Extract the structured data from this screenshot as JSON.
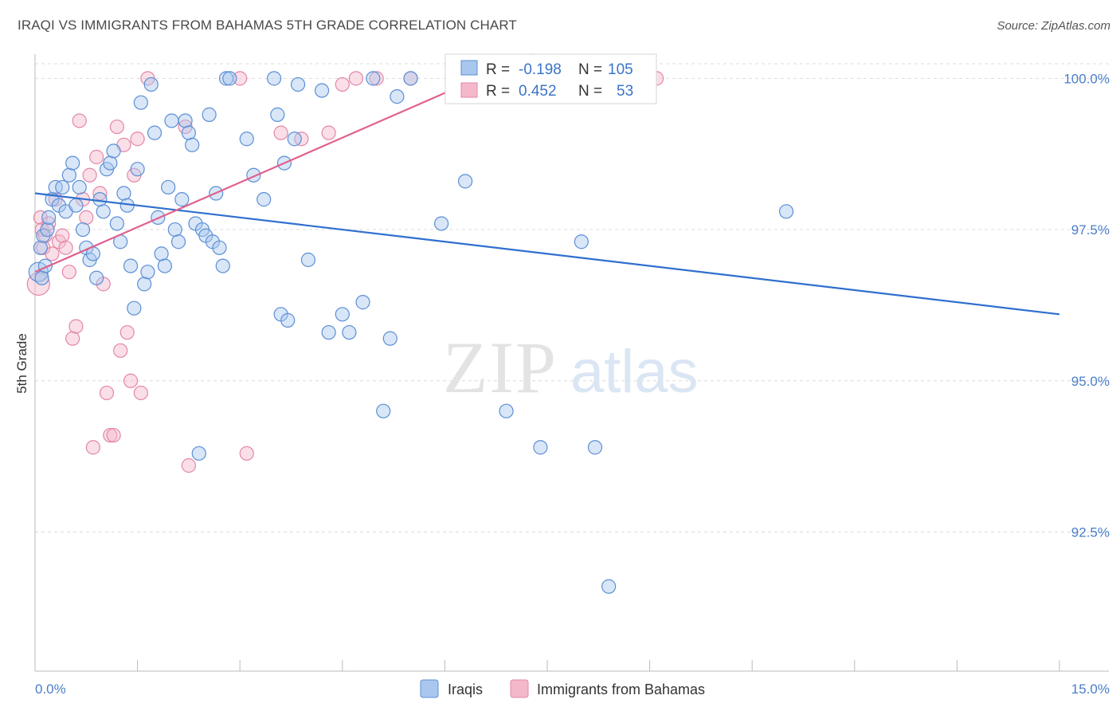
{
  "title": "IRAQI VS IMMIGRANTS FROM BAHAMAS 5TH GRADE CORRELATION CHART",
  "source": "Source: ZipAtlas.com",
  "watermark": {
    "zip": "ZIP",
    "atlas": "atlas"
  },
  "colors": {
    "blue_fill": "#a9c7ee",
    "blue_stroke": "#5b8fd6",
    "blue_line": "#2f6fcf",
    "pink_fill": "#f5b8cb",
    "pink_stroke": "#e486a6",
    "pink_line": "#e0608d",
    "tick_label": "#4a7ec9",
    "grid": "#dcdcdc"
  },
  "legend": {
    "rows": [
      {
        "r_label": "R =",
        "r_value": "-0.198",
        "n_label": "N =",
        "n_value": "105"
      },
      {
        "r_label": "R =",
        "r_value": "0.452",
        "n_label": "N =",
        "n_value": "53"
      }
    ]
  },
  "chart_data": {
    "type": "scatter",
    "title": "IRAQI VS IMMIGRANTS FROM BAHAMAS 5TH GRADE CORRELATION CHART",
    "xlabel": "",
    "ylabel": "5th Grade",
    "xlim": [
      0,
      15
    ],
    "ylim": [
      90.2,
      100.4
    ],
    "y_ticks": [
      100.0,
      97.5,
      95.0,
      92.5
    ],
    "y_tick_labels": [
      "100.0%",
      "97.5%",
      "95.0%",
      "92.5%"
    ],
    "x_tick_labels": [
      "0.0%",
      "15.0%"
    ],
    "grid": "horizontal dashed",
    "legend_position": "top-center",
    "series": [
      {
        "name": "Iraqis",
        "color": "#a9c7ee",
        "R": -0.198,
        "N": 105,
        "trend": {
          "x": [
            0,
            15
          ],
          "y": [
            98.1,
            96.1
          ]
        },
        "points": [
          [
            0.05,
            96.8
          ],
          [
            0.08,
            97.2
          ],
          [
            0.1,
            96.7
          ],
          [
            0.12,
            97.4
          ],
          [
            0.15,
            96.9
          ],
          [
            0.18,
            97.5
          ],
          [
            0.2,
            97.7
          ],
          [
            0.25,
            98.0
          ],
          [
            0.3,
            98.2
          ],
          [
            0.35,
            97.9
          ],
          [
            0.4,
            98.2
          ],
          [
            0.45,
            97.8
          ],
          [
            0.5,
            98.4
          ],
          [
            0.55,
            98.6
          ],
          [
            0.6,
            97.9
          ],
          [
            0.65,
            98.2
          ],
          [
            0.7,
            97.5
          ],
          [
            0.75,
            97.2
          ],
          [
            0.8,
            97.0
          ],
          [
            0.85,
            97.1
          ],
          [
            0.9,
            96.7
          ],
          [
            0.95,
            98.0
          ],
          [
            1.0,
            97.8
          ],
          [
            1.05,
            98.5
          ],
          [
            1.1,
            98.6
          ],
          [
            1.15,
            98.8
          ],
          [
            1.2,
            97.6
          ],
          [
            1.25,
            97.3
          ],
          [
            1.3,
            98.1
          ],
          [
            1.35,
            97.9
          ],
          [
            1.4,
            96.9
          ],
          [
            1.45,
            96.2
          ],
          [
            1.5,
            98.5
          ],
          [
            1.55,
            99.6
          ],
          [
            1.6,
            96.6
          ],
          [
            1.65,
            96.8
          ],
          [
            1.7,
            99.9
          ],
          [
            1.75,
            99.1
          ],
          [
            1.8,
            97.7
          ],
          [
            1.85,
            97.1
          ],
          [
            1.9,
            96.9
          ],
          [
            1.95,
            98.2
          ],
          [
            2.0,
            99.3
          ],
          [
            2.05,
            97.5
          ],
          [
            2.1,
            97.3
          ],
          [
            2.15,
            98.0
          ],
          [
            2.2,
            99.3
          ],
          [
            2.25,
            99.1
          ],
          [
            2.3,
            98.9
          ],
          [
            2.35,
            97.6
          ],
          [
            2.4,
            93.8
          ],
          [
            2.45,
            97.5
          ],
          [
            2.5,
            97.4
          ],
          [
            2.55,
            99.4
          ],
          [
            2.6,
            97.3
          ],
          [
            2.65,
            98.1
          ],
          [
            2.7,
            97.2
          ],
          [
            2.75,
            96.9
          ],
          [
            2.8,
            100.0
          ],
          [
            2.85,
            100.0
          ],
          [
            3.1,
            99.0
          ],
          [
            3.2,
            98.4
          ],
          [
            3.35,
            98.0
          ],
          [
            3.5,
            100.0
          ],
          [
            3.55,
            99.4
          ],
          [
            3.6,
            96.1
          ],
          [
            3.65,
            98.6
          ],
          [
            3.7,
            96.0
          ],
          [
            3.8,
            99.0
          ],
          [
            3.85,
            99.9
          ],
          [
            4.0,
            97.0
          ],
          [
            4.2,
            99.8
          ],
          [
            4.3,
            95.8
          ],
          [
            4.5,
            96.1
          ],
          [
            4.6,
            95.8
          ],
          [
            4.8,
            96.3
          ],
          [
            4.95,
            100.0
          ],
          [
            5.1,
            94.5
          ],
          [
            5.2,
            95.7
          ],
          [
            5.3,
            99.7
          ],
          [
            5.5,
            100.0
          ],
          [
            5.95,
            97.6
          ],
          [
            6.3,
            98.3
          ],
          [
            6.9,
            94.5
          ],
          [
            7.4,
            93.9
          ],
          [
            7.6,
            100.0
          ],
          [
            8.0,
            97.3
          ],
          [
            8.2,
            93.9
          ],
          [
            8.4,
            91.6
          ],
          [
            11.0,
            97.8
          ]
        ]
      },
      {
        "name": "Immigrants from Bahamas",
        "color": "#f5b8cb",
        "R": 0.452,
        "N": 53,
        "trend": {
          "x": [
            0,
            7.3
          ],
          "y": [
            96.8,
            100.4
          ]
        },
        "points": [
          [
            0.05,
            96.6
          ],
          [
            0.08,
            97.7
          ],
          [
            0.1,
            97.5
          ],
          [
            0.12,
            97.2
          ],
          [
            0.15,
            97.4
          ],
          [
            0.2,
            97.6
          ],
          [
            0.25,
            97.1
          ],
          [
            0.3,
            98.0
          ],
          [
            0.35,
            97.3
          ],
          [
            0.4,
            97.4
          ],
          [
            0.45,
            97.2
          ],
          [
            0.5,
            96.8
          ],
          [
            0.55,
            95.7
          ],
          [
            0.6,
            95.9
          ],
          [
            0.65,
            99.3
          ],
          [
            0.7,
            98.0
          ],
          [
            0.75,
            97.7
          ],
          [
            0.8,
            98.4
          ],
          [
            0.85,
            93.9
          ],
          [
            0.9,
            98.7
          ],
          [
            0.95,
            98.1
          ],
          [
            1.0,
            96.6
          ],
          [
            1.05,
            94.8
          ],
          [
            1.1,
            94.1
          ],
          [
            1.15,
            94.1
          ],
          [
            1.2,
            99.2
          ],
          [
            1.25,
            95.5
          ],
          [
            1.3,
            98.9
          ],
          [
            1.35,
            95.8
          ],
          [
            1.4,
            95.0
          ],
          [
            1.45,
            98.4
          ],
          [
            1.5,
            99.0
          ],
          [
            1.55,
            94.8
          ],
          [
            1.65,
            100.0
          ],
          [
            2.2,
            99.2
          ],
          [
            2.25,
            93.6
          ],
          [
            3.0,
            100.0
          ],
          [
            3.1,
            93.8
          ],
          [
            3.6,
            99.1
          ],
          [
            3.9,
            99.0
          ],
          [
            4.3,
            99.1
          ],
          [
            4.5,
            99.9
          ],
          [
            4.7,
            100.0
          ],
          [
            5.0,
            100.0
          ],
          [
            5.5,
            100.0
          ],
          [
            6.2,
            100.0
          ],
          [
            7.9,
            100.0
          ],
          [
            9.1,
            100.0
          ]
        ]
      }
    ]
  },
  "bottom_legend": [
    {
      "label": "Iraqis"
    },
    {
      "label": "Immigrants from Bahamas"
    }
  ]
}
